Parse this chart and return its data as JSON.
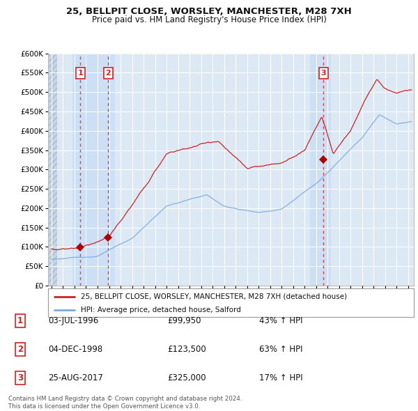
{
  "title1": "25, BELLPIT CLOSE, WORSLEY, MANCHESTER, M28 7XH",
  "title2": "Price paid vs. HM Land Registry's House Price Index (HPI)",
  "ylim": [
    0,
    600000
  ],
  "yticks": [
    0,
    50000,
    100000,
    150000,
    200000,
    250000,
    300000,
    350000,
    400000,
    450000,
    500000,
    550000,
    600000
  ],
  "xlim_start": 1993.7,
  "xlim_end": 2025.5,
  "background_color": "#ffffff",
  "plot_bg_color": "#dce9f5",
  "grid_color": "#ffffff",
  "sale_dates": [
    1996.5,
    1998.92,
    2017.65
  ],
  "sale_prices": [
    99950,
    123500,
    325000
  ],
  "sale_labels": [
    "1",
    "2",
    "3"
  ],
  "vline_color": "#dd3333",
  "sale_dot_color": "#aa0000",
  "highlight_regions": [
    {
      "start": 1995.8,
      "end": 1999.5
    },
    {
      "start": 2016.5,
      "end": 2018.3
    }
  ],
  "legend_line1": "25, BELLPIT CLOSE, WORSLEY, MANCHESTER, M28 7XH (detached house)",
  "legend_line2": "HPI: Average price, detached house, Salford",
  "footer1": "Contains HM Land Registry data © Crown copyright and database right 2024.",
  "footer2": "This data is licensed under the Open Government Licence v3.0.",
  "table_rows": [
    {
      "label": "1",
      "date": "03-JUL-1996",
      "price": "£99,950",
      "change": "43% ↑ HPI"
    },
    {
      "label": "2",
      "date": "04-DEC-1998",
      "price": "£123,500",
      "change": "63% ↑ HPI"
    },
    {
      "label": "3",
      "date": "25-AUG-2017",
      "price": "£325,000",
      "change": "17% ↑ HPI"
    }
  ],
  "hpi_line_color": "#7aaadd",
  "price_line_color": "#cc2222",
  "hatch_end": 1994.5
}
